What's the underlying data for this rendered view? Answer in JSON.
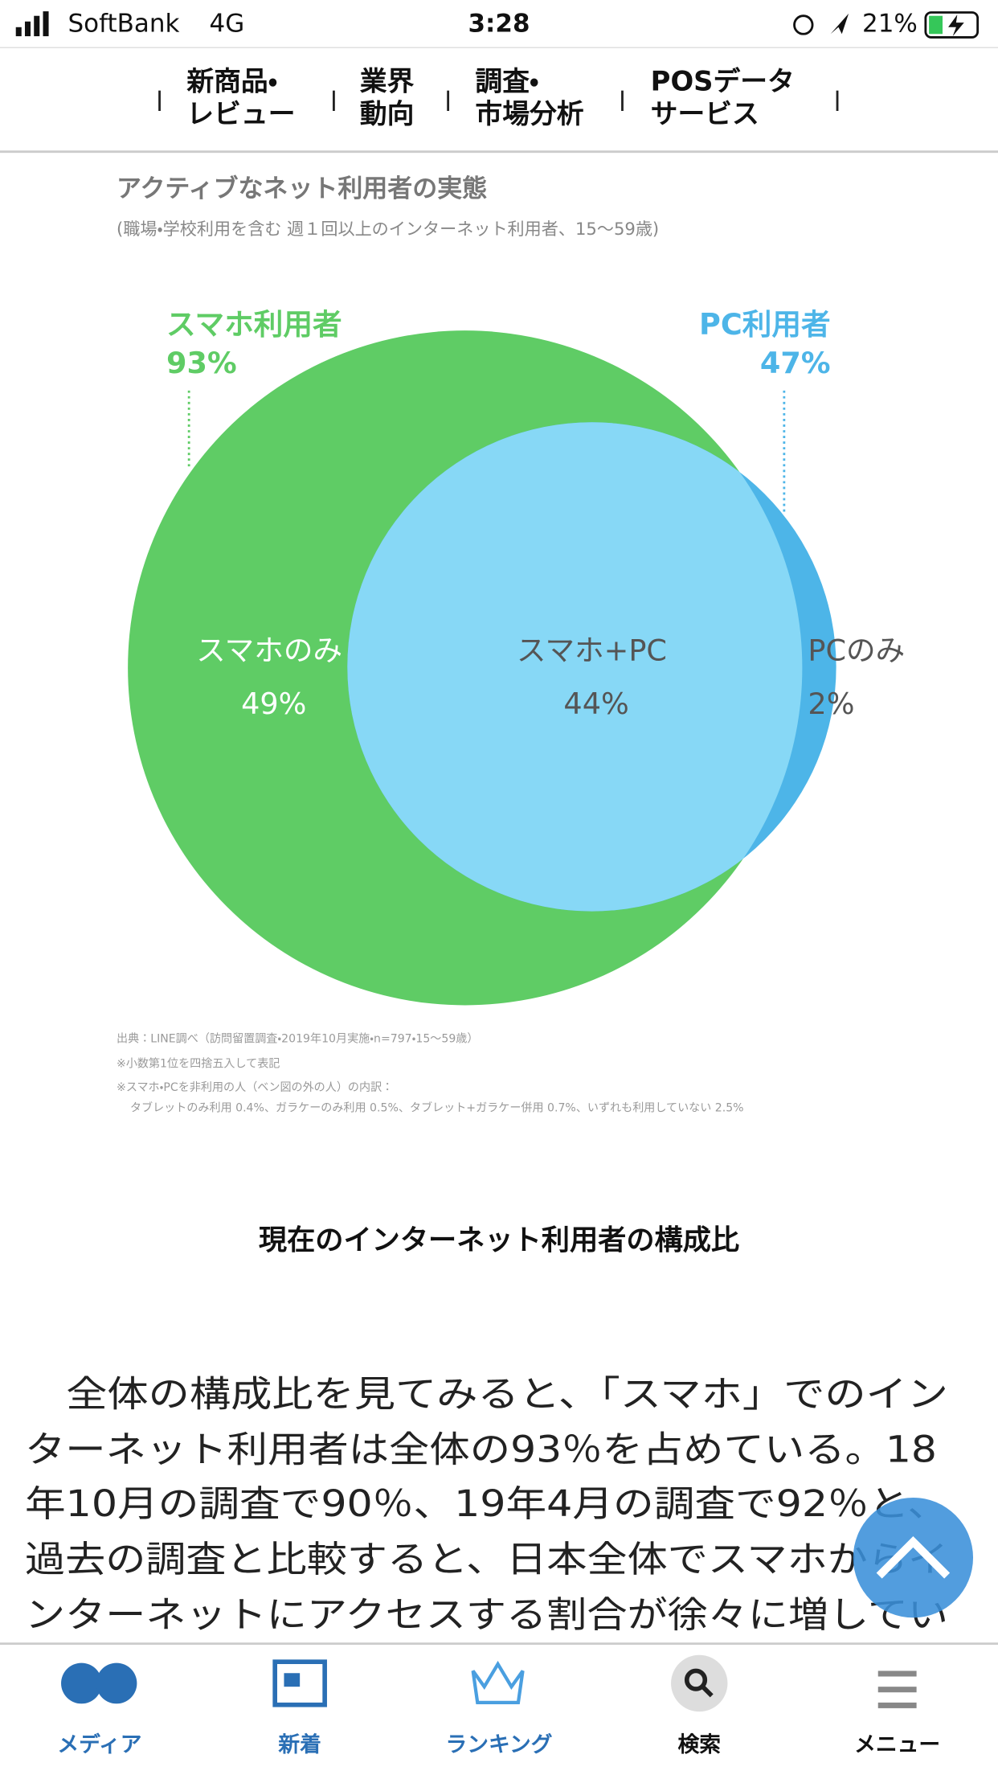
{
  "status_bar": {
    "carrier": "SoftBank",
    "network": "4G",
    "time": "3:28",
    "battery": "21%"
  },
  "nav": [
    [
      "新商品・",
      "レビュー"
    ],
    [
      "業界",
      "動向"
    ],
    [
      "調査・",
      "市場分析"
    ],
    [
      "POSデータ",
      "サービス"
    ]
  ],
  "figure": {
    "title": "アクティブなネット利用者の実態",
    "subtitle": "(職場・学校利用を含む 週１回以上のインターネット利用者、15〜59歳)",
    "circles": [
      {
        "name": "スマホ利用者",
        "share": "93%"
      },
      {
        "name": "PC利用者",
        "share": "47%"
      }
    ],
    "regions": [
      {
        "name": "スマホのみ",
        "share": "49%"
      },
      {
        "name": "スマホ+PC",
        "share": "44%"
      },
      {
        "name": "PCのみ",
        "share": "2%"
      }
    ],
    "notes": [
      "出典：LINE調べ（訪問留置調査・2019年10月実施・n=797・15〜59歳）",
      "※小数第1位を四捨五入して表記",
      "※スマホ・PCを非利用の人（ベン図の外の人）の内訳：",
      "タブレットのみ利用 0.4%、ガラケーのみ利用 0.5%、タブレット+ガラケー併用 0.7%、いずれも利用していない 2.5%"
    ],
    "caption": "現在のインターネット利用者の構成比"
  },
  "article": {
    "lines": [
      "　全体の構成比を見てみると、「スマホ」でのイン",
      "ターネット利用者は全体の93％を占めている。18",
      "年10月の調査で90％、19年4月の調査で92％と、",
      "過去の調査と比較すると、日本全体でスマホからイ",
      "ンターネットにアクセスする割合が徐々に増してい"
    ]
  },
  "tab_bar": [
    "メディア",
    "新着",
    "ランキング",
    "検索",
    "メニュー"
  ]
}
